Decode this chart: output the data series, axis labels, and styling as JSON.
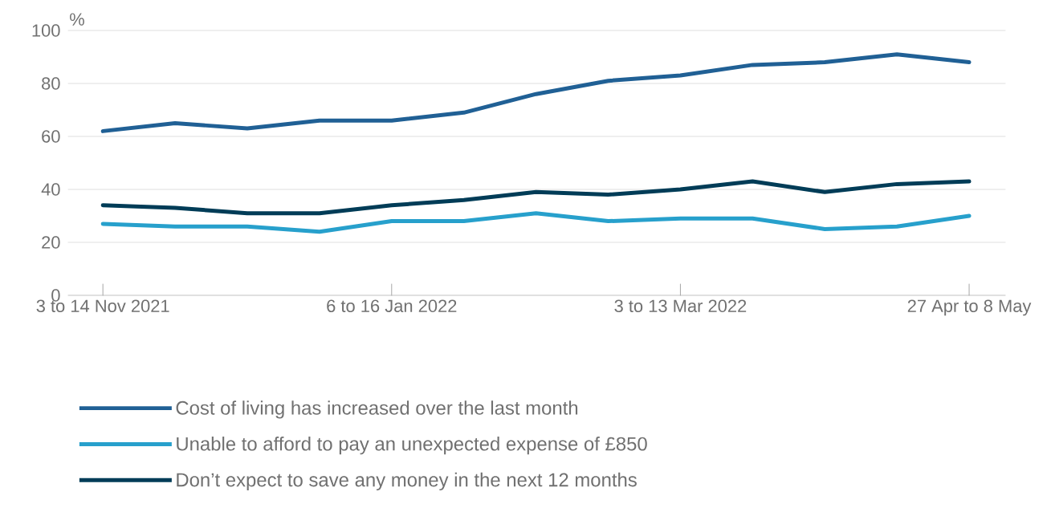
{
  "chart_data": {
    "type": "line",
    "ylabel": "%",
    "categories": [
      "3 to 14 Nov 2021",
      null,
      null,
      null,
      "6 to 16 Jan 2022",
      null,
      null,
      null,
      "3 to 13 Mar 2022",
      null,
      null,
      null,
      "27 Apr to 8 May"
    ],
    "series": [
      {
        "name": "Cost of living has increased over the last month",
        "color": "#206095",
        "values": [
          62,
          65,
          63,
          66,
          66,
          69,
          76,
          81,
          83,
          87,
          88,
          91,
          88
        ]
      },
      {
        "name": "Unable to afford to pay an unexpected expense of £850",
        "color": "#27a0cc",
        "values": [
          27,
          26,
          26,
          24,
          28,
          28,
          31,
          28,
          29,
          29,
          25,
          26,
          30
        ]
      },
      {
        "name": "Don’t expect to save any money in the next 12 months",
        "color": "#003c57",
        "values": [
          34,
          33,
          31,
          31,
          34,
          36,
          39,
          38,
          40,
          43,
          39,
          42,
          43
        ]
      }
    ],
    "ylim": [
      0,
      100
    ],
    "yticks": [
      0,
      20,
      40,
      60,
      80,
      100
    ],
    "grid": "y",
    "legend": "bottom",
    "marker": "none",
    "line_style": "solid"
  }
}
